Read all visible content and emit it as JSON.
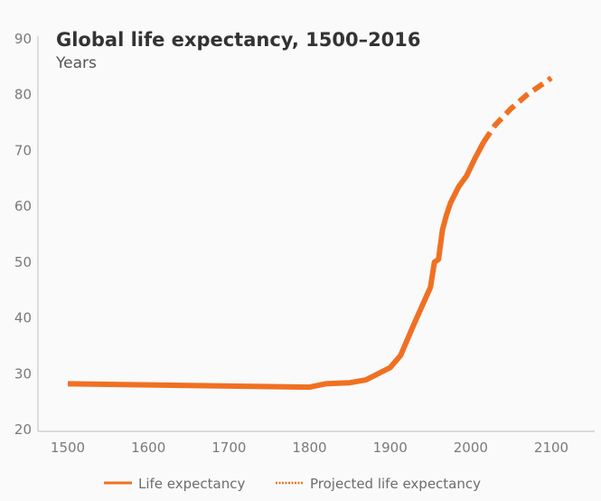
{
  "chart_data": {
    "type": "line",
    "title": "Global life expectancy, 1500–2016",
    "subtitle": "Years",
    "xlabel": "",
    "ylabel": "Years",
    "xlim": [
      1465,
      2150
    ],
    "ylim": [
      20,
      90
    ],
    "x_ticks": [
      1500,
      1600,
      1700,
      1800,
      1900,
      2000,
      2100
    ],
    "y_ticks": [
      20,
      30,
      40,
      50,
      60,
      70,
      80,
      90
    ],
    "grid": false,
    "legend_position": "bottom",
    "color": "#f07022",
    "series": [
      {
        "name": "Life expectancy",
        "style": "solid",
        "x": [
          1500,
          1600,
          1700,
          1800,
          1820,
          1850,
          1870,
          1900,
          1913,
          1930,
          1950,
          1955,
          1960,
          1965,
          1970,
          1975,
          1985,
          1995,
          2005,
          2016
        ],
        "y": [
          28.2,
          28.0,
          27.8,
          27.6,
          28.2,
          28.4,
          28.9,
          31.1,
          33.3,
          39.0,
          45.5,
          50.0,
          50.5,
          55.8,
          58.5,
          60.6,
          63.5,
          65.5,
          68.5,
          71.5
        ]
      },
      {
        "name": "Projected life expectancy",
        "style": "dashed",
        "x": [
          2016,
          2030,
          2050,
          2070,
          2085,
          2100
        ],
        "y": [
          71.5,
          74.5,
          77.5,
          80.0,
          81.5,
          83.0
        ]
      }
    ]
  }
}
